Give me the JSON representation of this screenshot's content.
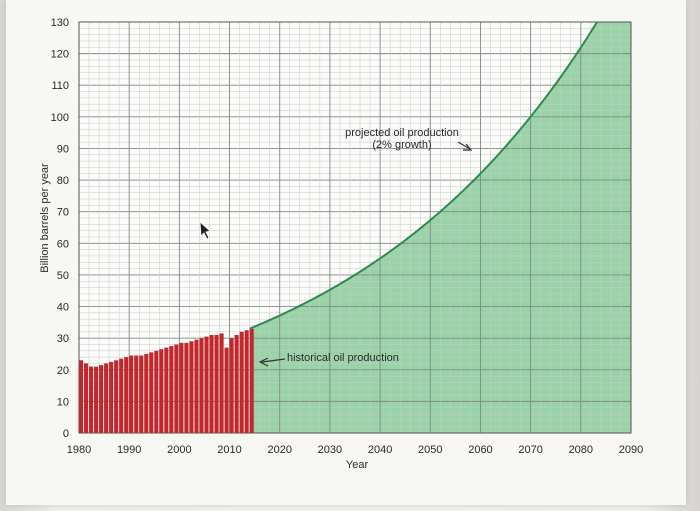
{
  "chart_data": {
    "type": "area",
    "title": "",
    "xlabel": "Year",
    "ylabel": "Billion barrels per year",
    "xlim": [
      1980,
      2090
    ],
    "ylim": [
      0,
      130
    ],
    "x_ticks": [
      "1980",
      "1990",
      "2000",
      "2010",
      "2020",
      "2030",
      "2040",
      "2050",
      "2060",
      "2070",
      "2080",
      "2090"
    ],
    "y_ticks": [
      "0",
      "10",
      "20",
      "30",
      "40",
      "50",
      "60",
      "70",
      "80",
      "90",
      "100",
      "110",
      "120",
      "130"
    ],
    "grid": true,
    "series": [
      {
        "name": "historical oil production",
        "type": "bar",
        "color": "#c0282e",
        "x": [
          1980,
          1981,
          1982,
          1983,
          1984,
          1985,
          1986,
          1987,
          1988,
          1989,
          1990,
          1991,
          1992,
          1993,
          1994,
          1995,
          1996,
          1997,
          1998,
          1999,
          2000,
          2001,
          2002,
          2003,
          2004,
          2005,
          2006,
          2007,
          2008,
          2009,
          2010,
          2011,
          2012,
          2013,
          2014
        ],
        "values": [
          23,
          22,
          21,
          21,
          21.5,
          22,
          22.5,
          23,
          23.5,
          24,
          24.5,
          24.5,
          24.5,
          25,
          25.5,
          26,
          26.5,
          27,
          27.5,
          28,
          28.5,
          28.5,
          29,
          29.5,
          30,
          30.5,
          31,
          31,
          31.5,
          27,
          30,
          31,
          32,
          32.5,
          33
        ]
      },
      {
        "name": "projected oil production (2% growth)",
        "type": "area",
        "color": "#2f8a4f",
        "fill": "#9bd3a8",
        "start_x": 2014,
        "start_value": 33,
        "growth_rate": 0.02,
        "end_x": 2090
      }
    ],
    "annotations": [
      {
        "text": "projected oil production",
        "target_x": 2060,
        "target_y": 90
      },
      {
        "text": "(2% growth)",
        "target_x": 2060,
        "target_y": 90
      },
      {
        "text": "historical oil production",
        "target_x": 2016,
        "target_y": 24
      }
    ]
  }
}
